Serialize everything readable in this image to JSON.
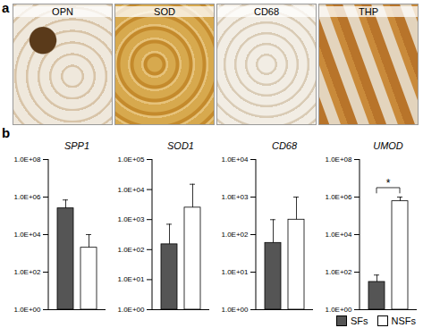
{
  "panel_a": {
    "label": "a",
    "images": [
      {
        "label": "OPN"
      },
      {
        "label": "SOD"
      },
      {
        "label": "CD68"
      },
      {
        "label": "THP"
      }
    ]
  },
  "panel_b": {
    "label": "b"
  },
  "chart_data": [
    {
      "type": "bar",
      "title": "SPP1",
      "log": "y",
      "tick_labels": "y",
      "ylim": [
        1,
        100000000
      ],
      "yticks": [
        {
          "value": 1,
          "label": "1.0E+00"
        },
        {
          "value": 100,
          "label": "1.0E+02"
        },
        {
          "value": 10000,
          "label": "1.0E+04"
        },
        {
          "value": 1000000,
          "label": "1.0E+06"
        },
        {
          "value": 100000000,
          "label": "1.0E+08"
        }
      ],
      "series": [
        {
          "name": "SFs",
          "color": "#555555",
          "values": [
            250000
          ],
          "errors": [
            450000
          ]
        },
        {
          "name": "NSFs",
          "color": "#ffffff",
          "values": [
            2000
          ],
          "errors": [
            8000
          ]
        }
      ]
    },
    {
      "type": "bar",
      "title": "SOD1",
      "log": "y",
      "tick_labels": "y",
      "ylim": [
        1,
        100000
      ],
      "yticks": [
        {
          "value": 1,
          "label": "1.0E+00"
        },
        {
          "value": 10,
          "label": "1.0E+01"
        },
        {
          "value": 100,
          "label": "1.0E+02"
        },
        {
          "value": 1000,
          "label": "1.0E+03"
        },
        {
          "value": 10000,
          "label": "1.0E+04"
        },
        {
          "value": 100000,
          "label": "1.0E+05"
        }
      ],
      "series": [
        {
          "name": "SFs",
          "color": "#555555",
          "values": [
            150
          ],
          "errors": [
            550
          ]
        },
        {
          "name": "NSFs",
          "color": "#ffffff",
          "values": [
            2500
          ],
          "errors": [
            12500
          ]
        }
      ]
    },
    {
      "type": "bar",
      "title": "CD68",
      "log": "y",
      "tick_labels": "y",
      "ylim": [
        1,
        10000
      ],
      "yticks": [
        {
          "value": 1,
          "label": "1.0E+00"
        },
        {
          "value": 10,
          "label": "1.0E+01"
        },
        {
          "value": 100,
          "label": "1.0E+02"
        },
        {
          "value": 1000,
          "label": "1.0E+03"
        },
        {
          "value": 10000,
          "label": "1.0E+04"
        }
      ],
      "series": [
        {
          "name": "SFs",
          "color": "#555555",
          "values": [
            60
          ],
          "errors": [
            190
          ]
        },
        {
          "name": "NSFs",
          "color": "#ffffff",
          "values": [
            250
          ],
          "errors": [
            750
          ]
        }
      ]
    },
    {
      "type": "bar",
      "title": "UMOD",
      "log": "y",
      "tick_labels": "y",
      "legend": "bottom-right",
      "ylim": [
        1,
        100000000
      ],
      "yticks": [
        {
          "value": 1,
          "label": "1.0E+00"
        },
        {
          "value": 100,
          "label": "1.0E+02"
        },
        {
          "value": 10000,
          "label": "1.0E+04"
        },
        {
          "value": 1000000,
          "label": "1.0E+06"
        },
        {
          "value": 100000000,
          "label": "1.0E+08"
        }
      ],
      "series": [
        {
          "name": "SFs",
          "color": "#555555",
          "values": [
            30
          ],
          "errors": [
            40
          ]
        },
        {
          "name": "NSFs",
          "color": "#ffffff",
          "values": [
            600000
          ],
          "errors": [
            400000
          ]
        }
      ],
      "annotations": [
        {
          "text": "*",
          "from": "SFs",
          "to": "NSFs"
        }
      ]
    }
  ]
}
